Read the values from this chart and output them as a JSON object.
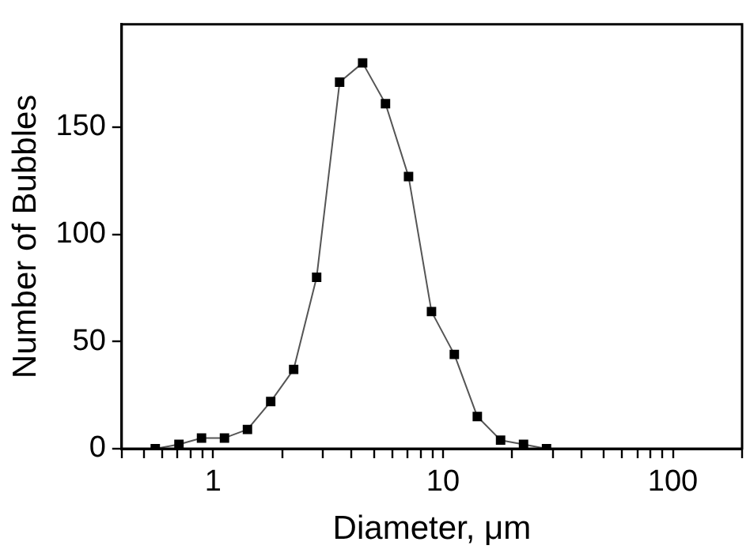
{
  "chart_data": {
    "type": "line",
    "xlabel": "Diameter, μm",
    "ylabel": "Number of Bubbles",
    "x": [
      0.56,
      0.71,
      0.89,
      1.12,
      1.41,
      1.78,
      2.24,
      2.82,
      3.55,
      4.47,
      5.62,
      7.08,
      8.91,
      11.2,
      14.1,
      17.8,
      22.4,
      28.2
    ],
    "series": [
      {
        "color": "#000000",
        "values": [
          0,
          2,
          5,
          5,
          9,
          22,
          37,
          80,
          171,
          180,
          161,
          127,
          64,
          44,
          15,
          4,
          2,
          0
        ]
      }
    ],
    "log": "x",
    "xlim": [
      0.4,
      200
    ],
    "ylim": [
      0,
      198
    ],
    "xticks": [
      {
        "value": 0.4,
        "label": null
      },
      {
        "value": 0.5,
        "label": null
      },
      {
        "value": 0.6,
        "label": null
      },
      {
        "value": 0.7,
        "label": null
      },
      {
        "value": 0.8,
        "label": null
      },
      {
        "value": 0.9,
        "label": null
      },
      1,
      {
        "value": 2,
        "label": null
      },
      {
        "value": 3,
        "label": null
      },
      {
        "value": 4,
        "label": null
      },
      {
        "value": 5,
        "label": null
      },
      {
        "value": 6,
        "label": null
      },
      {
        "value": 7,
        "label": null
      },
      {
        "value": 8,
        "label": null
      },
      {
        "value": 9,
        "label": null
      },
      10,
      {
        "value": 20,
        "label": null
      },
      {
        "value": 30,
        "label": null
      },
      {
        "value": 40,
        "label": null
      },
      {
        "value": 50,
        "label": null
      },
      {
        "value": 60,
        "label": null
      },
      {
        "value": 70,
        "label": null
      },
      {
        "value": 80,
        "label": null
      },
      {
        "value": 90,
        "label": null
      },
      100,
      {
        "value": 200,
        "label": null
      }
    ],
    "yticks": [
      0,
      50,
      100,
      150
    ],
    "grid": false,
    "legend": false,
    "marker": "square",
    "line_style": "solid"
  }
}
